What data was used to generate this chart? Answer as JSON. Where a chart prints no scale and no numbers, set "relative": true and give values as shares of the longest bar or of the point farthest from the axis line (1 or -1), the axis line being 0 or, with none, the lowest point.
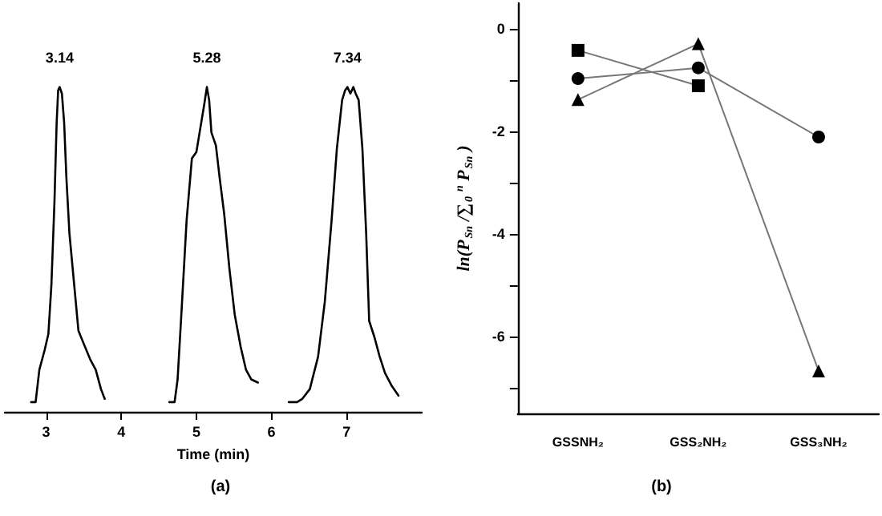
{
  "chart_data": [
    {
      "type": "line",
      "title": "(a)",
      "xlabel": "Time (min)",
      "relative": true,
      "xlim": [
        2.45,
        8
      ],
      "xticks": [
        3,
        4,
        5,
        6,
        7
      ],
      "tick_labels": "x",
      "grid": false,
      "marker": "none",
      "annotations": [
        "3.14",
        "5.28",
        "7.34"
      ],
      "series": [
        {
          "color": "#000000",
          "x": [
            2.8,
            2.86,
            2.91,
            2.98,
            3.03,
            3.07,
            3.11,
            3.14,
            3.16,
            3.18,
            3.21,
            3.24,
            3.27,
            3.31,
            3.37,
            3.43,
            3.5,
            3.59,
            3.66,
            3.73,
            3.78
          ],
          "values": [
            0.03,
            0.03,
            0.13,
            0.19,
            0.24,
            0.39,
            0.64,
            0.89,
            0.99,
            1.0,
            0.98,
            0.89,
            0.72,
            0.55,
            0.4,
            0.25,
            0.21,
            0.16,
            0.13,
            0.07,
            0.04
          ]
        },
        {
          "color": "#000000",
          "x": [
            4.64,
            4.71,
            4.75,
            4.8,
            4.87,
            4.94,
            5.0,
            5.05,
            5.1,
            5.14,
            5.17,
            5.2,
            5.26,
            5.31,
            5.37,
            5.44,
            5.51,
            5.59,
            5.66,
            5.73,
            5.82
          ],
          "values": [
            0.03,
            0.03,
            0.1,
            0.3,
            0.59,
            0.78,
            0.8,
            0.87,
            0.94,
            1.0,
            0.96,
            0.86,
            0.82,
            0.72,
            0.61,
            0.44,
            0.3,
            0.2,
            0.13,
            0.1,
            0.09
          ]
        },
        {
          "color": "#000000",
          "x": [
            6.23,
            6.34,
            6.41,
            6.51,
            6.62,
            6.71,
            6.8,
            6.87,
            6.94,
            6.98,
            7.01,
            7.05,
            7.09,
            7.12,
            7.16,
            7.21,
            7.26,
            7.3,
            7.37,
            7.44,
            7.51,
            7.6,
            7.69
          ],
          "values": [
            0.03,
            0.03,
            0.04,
            0.07,
            0.17,
            0.34,
            0.59,
            0.81,
            0.96,
            0.99,
            1.0,
            0.98,
            1.0,
            0.98,
            0.96,
            0.81,
            0.55,
            0.28,
            0.23,
            0.17,
            0.12,
            0.08,
            0.05
          ]
        }
      ]
    },
    {
      "type": "line",
      "title": "(b)",
      "ylabel": "ln(P$_{Sn}$/∑$_{0}$$^{n}$ P$_{Sn}$)",
      "categories": [
        "GSSNH₂",
        "GSS₂NH₂",
        "GSS₃NH₂"
      ],
      "ylim": [
        -7.5,
        0.5
      ],
      "yticks": [
        {
          "value": -7,
          "label": null
        },
        -6,
        {
          "value": -5,
          "label": null
        },
        -4,
        {
          "value": -3,
          "label": null
        },
        -2,
        {
          "value": -1,
          "label": null
        },
        0
      ],
      "grid": false,
      "series": [
        {
          "color": "#000000",
          "marker": "square",
          "values": [
            -0.42,
            -1.11,
            null
          ]
        },
        {
          "color": "#000000",
          "marker": "circle",
          "values": [
            -0.97,
            -0.76,
            -2.11
          ]
        },
        {
          "color": "#000000",
          "marker": "triangle",
          "values": [
            -1.38,
            -0.29,
            -6.67
          ]
        }
      ]
    }
  ]
}
